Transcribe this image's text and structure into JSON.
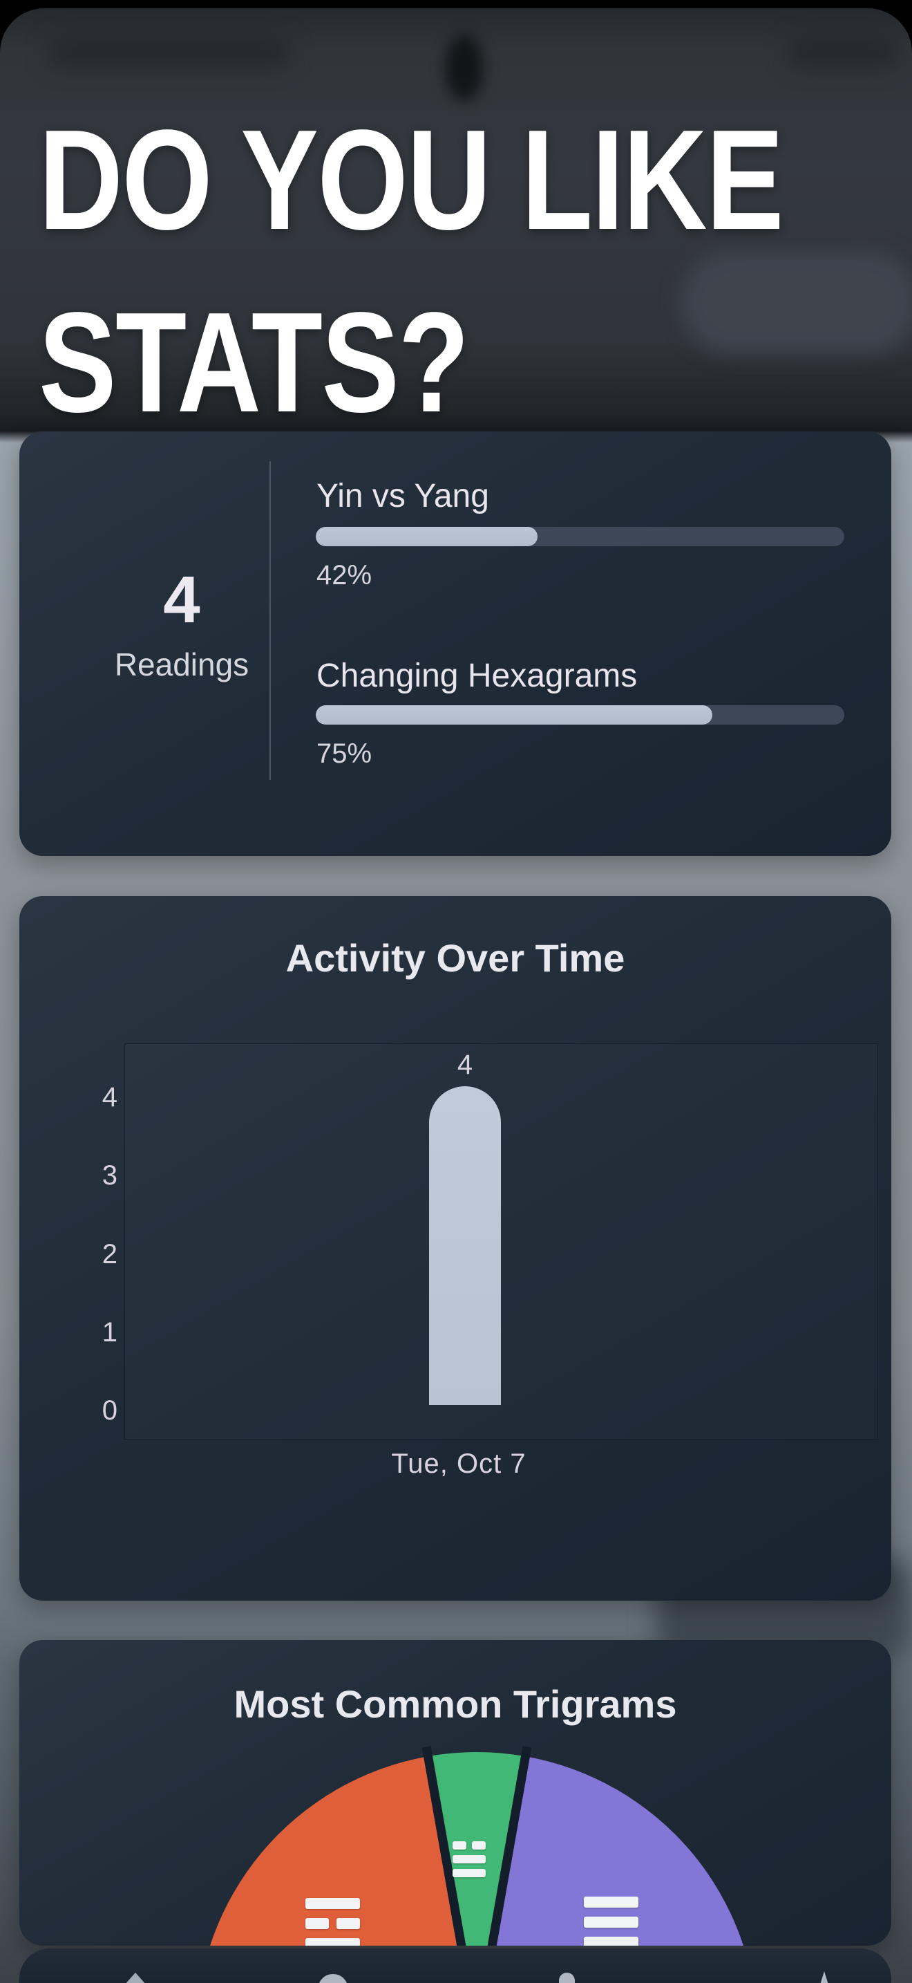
{
  "headline": {
    "line1": "DO YOU LIKE",
    "line2": "STATS?"
  },
  "stats_card": {
    "value": "4",
    "value_label": "Readings",
    "metrics": [
      {
        "label": "Yin vs Yang",
        "percent": 42,
        "percent_label": "42%"
      },
      {
        "label": "Changing Hexagrams",
        "percent": 75,
        "percent_label": "75%"
      }
    ],
    "bar_track_color": "#3d4758",
    "bar_fill_color": "#b5c0cf"
  },
  "chart_data": [
    {
      "type": "bar",
      "title": "Activity Over Time",
      "categories": [
        "Tue, Oct 7"
      ],
      "values": [
        4
      ],
      "data_labels": [
        "4"
      ],
      "xlabel": "",
      "ylabel": "",
      "ylim": [
        0,
        4
      ],
      "yticks": [
        4,
        3,
        2,
        1,
        0
      ],
      "grid": false,
      "legend": "none",
      "bar_color": "#b9c3d1"
    },
    {
      "type": "pie",
      "variant": "half-pie",
      "title": "Most Common Trigrams",
      "slices": [
        {
          "trigram_pattern": [
            "solid",
            "broken",
            "solid"
          ],
          "color": "#df5f3a",
          "start_deg": -90,
          "end_deg": -10,
          "share_pct": 44.4
        },
        {
          "trigram_pattern": [
            "broken",
            "solid",
            "solid"
          ],
          "color": "#42b876",
          "start_deg": -10,
          "end_deg": 10,
          "share_pct": 11.1
        },
        {
          "trigram_pattern": [
            "solid",
            "solid",
            "solid"
          ],
          "color": "#8476d6",
          "start_deg": 10,
          "end_deg": 90,
          "share_pct": 44.4
        }
      ],
      "gap_color": "#141d2a",
      "legend": "none"
    }
  ],
  "colors": {
    "card_background": "#1f2a37",
    "page_top_overlay": "#2f3339",
    "headline_text": "#ffffff",
    "chart_label": "#d8d4df",
    "nav_icon": "#aeb7c2"
  }
}
